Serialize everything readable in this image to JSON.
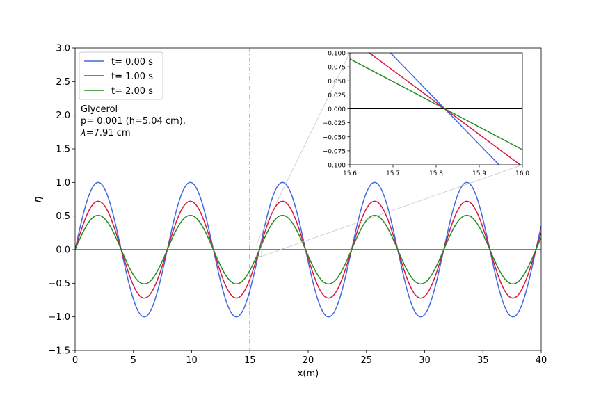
{
  "chart_data": [
    {
      "type": "line",
      "xlabel": "x(m)",
      "ylabel": "η",
      "xlim": [
        0,
        40
      ],
      "ylim": [
        -1.5,
        3.0
      ],
      "xticks": [
        "0",
        "5",
        "10",
        "15",
        "20",
        "25",
        "30",
        "35",
        "40"
      ],
      "xtick_values": [
        0,
        5,
        10,
        15,
        20,
        25,
        30,
        35,
        40
      ],
      "yticks": [
        "−1.5",
        "−1.0",
        "−0.5",
        "0.0",
        "0.5",
        "1.0",
        "1.5",
        "2.0",
        "2.5",
        "3.0"
      ],
      "ytick_values": [
        -1.5,
        -1.0,
        -0.5,
        0.0,
        0.5,
        1.0,
        1.5,
        2.0,
        2.5,
        3.0
      ],
      "grid": false,
      "legend": "upper-left",
      "wavelength": 7.91,
      "series": [
        {
          "name": "t= 0.00 s",
          "color": "#4169e1",
          "amplitude": 1.0
        },
        {
          "name": "t= 1.00 s",
          "color": "#dc143c",
          "amplitude": 0.72
        },
        {
          "name": "t= 2.00 s",
          "color": "#228b22",
          "amplitude": 0.51
        }
      ],
      "zero_line": 0.0,
      "vertical_line_x": 15,
      "annotation": {
        "line1": "Glycerol",
        "line2": "p= 0.001 (h=5.04 cm),",
        "line3_symbol": "λ",
        "line3_rest": "=7.91 cm"
      }
    },
    {
      "type": "line",
      "role": "inset-zoom",
      "xlim": [
        15.6,
        16.0
      ],
      "ylim": [
        -0.1,
        0.1
      ],
      "xticks": [
        "15.6",
        "15.7",
        "15.8",
        "15.9",
        "16.0"
      ],
      "xtick_values": [
        15.6,
        15.7,
        15.8,
        15.9,
        16.0
      ],
      "yticks": [
        "−0.100",
        "−0.075",
        "−0.050",
        "−0.025",
        "0.000",
        "0.025",
        "0.050",
        "0.075",
        "0.100"
      ],
      "ytick_values": [
        -0.1,
        -0.075,
        -0.05,
        -0.025,
        0.0,
        0.025,
        0.05,
        0.075,
        0.1
      ],
      "crossing_x": 15.82
    }
  ]
}
